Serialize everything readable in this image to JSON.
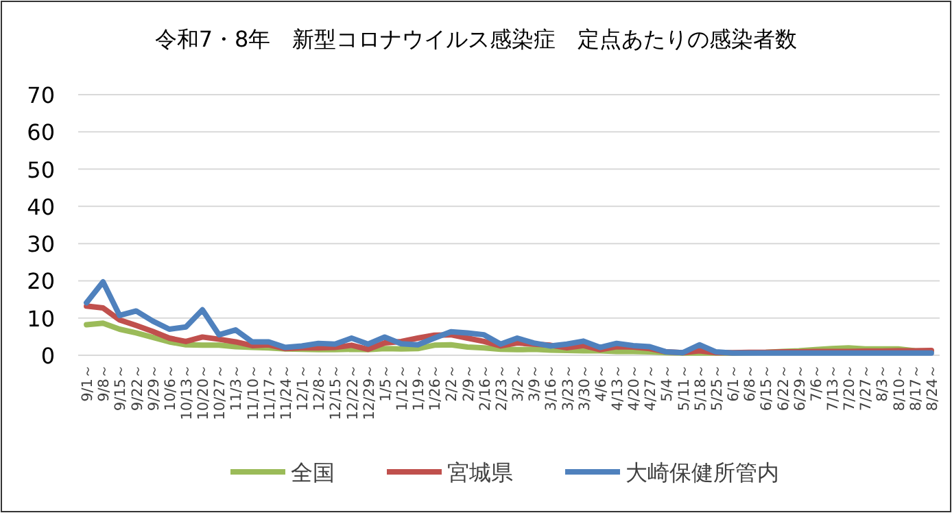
{
  "chart_data": {
    "type": "line",
    "title": "令和7・8年　新型コロナウイルス感染症　定点あたりの感染者数",
    "categories": [
      "9/1～",
      "9/8～",
      "9/15～",
      "9/22～",
      "9/29～",
      "10/6～",
      "10/13～",
      "10/20～",
      "10/27～",
      "11/3～",
      "11/10～",
      "11/17～",
      "11/24～",
      "12/1～",
      "12/8～",
      "12/15～",
      "12/22～",
      "12/29～",
      "1/5～",
      "1/12～",
      "1/19～",
      "1/26～",
      "2/2～",
      "2/9～",
      "2/16～",
      "2/23～",
      "3/2～",
      "3/9～",
      "3/16～",
      "3/23～",
      "3/30～",
      "4/6～",
      "4/13～",
      "4/20～",
      "4/27～",
      "5/4～",
      "5/11～",
      "5/18～",
      "5/25～",
      "6/1～",
      "6/8～",
      "6/15～",
      "6/22～",
      "6/29～",
      "7/6～",
      "7/13～",
      "7/20～",
      "7/27～",
      "8/3～",
      "8/10～",
      "8/17～",
      "8/24～"
    ],
    "series": [
      {
        "name": "全国",
        "color": "#9bbb59",
        "values": [
          8.2,
          8.6,
          7.0,
          6.0,
          4.8,
          3.6,
          2.8,
          2.7,
          2.7,
          2.3,
          2.1,
          2.0,
          1.7,
          1.6,
          1.5,
          1.5,
          1.6,
          1.5,
          1.8,
          1.7,
          1.8,
          2.7,
          2.8,
          2.2,
          2.0,
          1.6,
          1.5,
          1.6,
          1.4,
          1.3,
          1.2,
          1.2,
          1.0,
          1.0,
          0.9,
          0.7,
          0.6,
          0.6,
          0.6,
          0.6,
          0.7,
          0.8,
          1.0,
          1.2,
          1.5,
          1.8,
          2.0,
          1.7,
          1.7,
          1.7,
          1.2,
          1.1
        ]
      },
      {
        "name": "宮城県",
        "color": "#c0504d",
        "values": [
          13.2,
          12.7,
          9.5,
          8.0,
          6.4,
          4.6,
          3.7,
          4.9,
          4.3,
          3.6,
          2.6,
          2.8,
          1.8,
          2.0,
          2.0,
          2.1,
          2.7,
          1.6,
          3.3,
          3.7,
          4.6,
          5.4,
          5.5,
          4.6,
          3.7,
          2.5,
          3.3,
          3.0,
          2.7,
          2.0,
          2.6,
          1.5,
          2.3,
          2.2,
          1.8,
          0.9,
          0.7,
          1.2,
          0.7,
          0.7,
          0.8,
          0.8,
          0.9,
          0.9,
          1.0,
          1.0,
          1.0,
          1.1,
          1.1,
          1.2,
          1.2,
          1.3
        ]
      },
      {
        "name": "大崎保健所管内",
        "color": "#4f81bd",
        "values": [
          14.1,
          19.7,
          10.7,
          11.9,
          9.2,
          7.0,
          7.6,
          12.2,
          5.5,
          6.8,
          3.6,
          3.6,
          2.1,
          2.5,
          3.2,
          3.0,
          4.6,
          3.0,
          4.9,
          3.1,
          2.8,
          4.6,
          6.3,
          6.0,
          5.5,
          3.0,
          4.6,
          3.3,
          2.5,
          3.0,
          3.8,
          2.1,
          3.2,
          2.6,
          2.3,
          0.9,
          0.7,
          2.8,
          0.9,
          0.6,
          0.6,
          0.6,
          0.6,
          0.6,
          0.6,
          0.6,
          0.6,
          0.6,
          0.6,
          0.6,
          0.6,
          0.6
        ]
      }
    ],
    "ylim": [
      0,
      70
    ],
    "yticks": [
      0,
      10,
      20,
      30,
      40,
      50,
      60,
      70
    ],
    "grid": "y",
    "legend": "bottom",
    "marker": "none",
    "line_style": "solid"
  }
}
